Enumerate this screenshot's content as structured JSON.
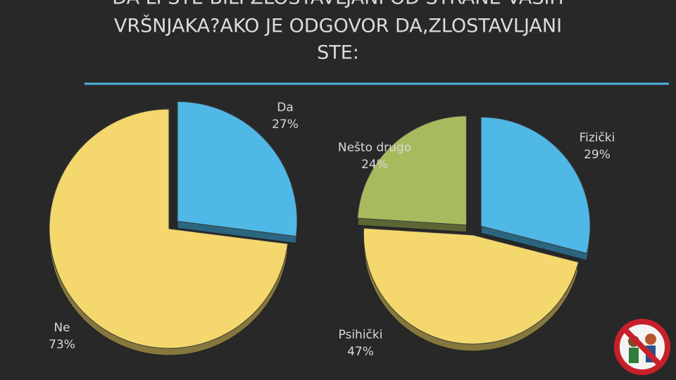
{
  "title_lines": [
    "DA LI STE BILI ZLOSTAVLJANI OD STRANE VAŠIH",
    "VRŠNJAKA?AKO  JE ODGOVOR DA,ZLOSTAVLJANI",
    "STE:"
  ],
  "chart_data": [
    {
      "type": "pie",
      "categories": [
        "Da",
        "Ne"
      ],
      "values": [
        27,
        73
      ],
      "value_labels": [
        "27%",
        "73%"
      ],
      "colors": [
        "#4fb8e6",
        "#f4d86e"
      ]
    },
    {
      "type": "pie",
      "categories": [
        "Fizički",
        "Psihički",
        "Nešto drugo"
      ],
      "values": [
        29,
        47,
        24
      ],
      "value_labels": [
        "29%",
        "47%",
        "24%"
      ],
      "colors": [
        "#4fb8e6",
        "#f4d86e",
        "#a8ba5e"
      ]
    }
  ]
}
